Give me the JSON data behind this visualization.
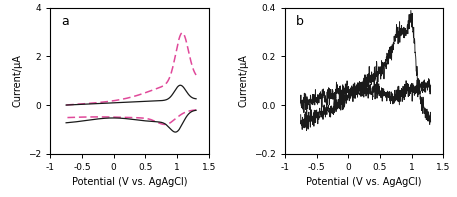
{
  "panel_a": {
    "label": "a",
    "xlim": [
      -1.0,
      1.5
    ],
    "ylim": [
      -2.0,
      4.0
    ],
    "xticks": [
      -1.0,
      -0.5,
      0.0,
      0.5,
      1.0,
      1.5
    ],
    "yticks": [
      -2,
      0,
      2,
      4
    ],
    "xlabel": "Potential (V vs. AgAgCl)",
    "ylabel": "Current/µA"
  },
  "panel_b": {
    "label": "b",
    "xlim": [
      -1.0,
      1.5
    ],
    "ylim": [
      -0.2,
      0.4
    ],
    "xticks": [
      -1.0,
      -0.5,
      0.0,
      0.5,
      1.0,
      1.5
    ],
    "yticks": [
      -0.2,
      0.0,
      0.2,
      0.4
    ],
    "xlabel": "Potential (V vs. AgAgCl)",
    "ylabel": "Current/µA"
  },
  "background_color": "#ffffff",
  "solid_color": "#1a1a1a",
  "dashed_color": "#e0499a",
  "noise_amplitude_b": 0.018,
  "noise_amplitude_a": 0.0
}
